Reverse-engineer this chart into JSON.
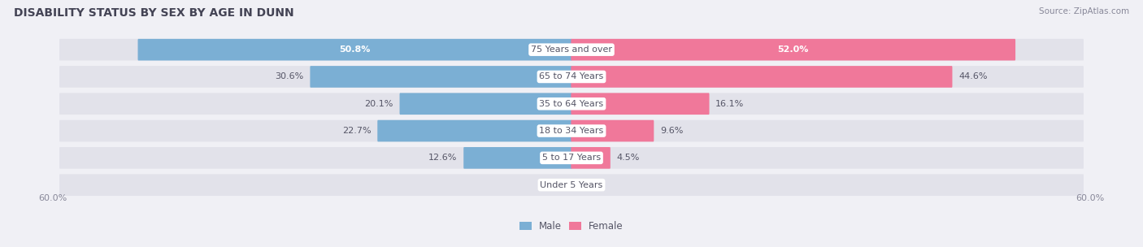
{
  "title": "DISABILITY STATUS BY SEX BY AGE IN DUNN",
  "source": "Source: ZipAtlas.com",
  "categories": [
    "Under 5 Years",
    "5 to 17 Years",
    "18 to 34 Years",
    "35 to 64 Years",
    "65 to 74 Years",
    "75 Years and over"
  ],
  "male_values": [
    0.0,
    12.6,
    22.7,
    20.1,
    30.6,
    50.8
  ],
  "female_values": [
    0.0,
    4.5,
    9.6,
    16.1,
    44.6,
    52.0
  ],
  "male_color": "#7bafd4",
  "female_color": "#f0789a",
  "male_label": "Male",
  "female_label": "Female",
  "x_max": 60.0,
  "bar_bg_color": "#e2e2ea",
  "title_color": "#444455",
  "text_color": "#555566",
  "axis_label_color": "#888899",
  "title_fontsize": 10,
  "label_fontsize": 8,
  "category_fontsize": 8,
  "source_fontsize": 7.5,
  "inner_label_50_8_color": "white",
  "inner_label_52_0_color": "white"
}
